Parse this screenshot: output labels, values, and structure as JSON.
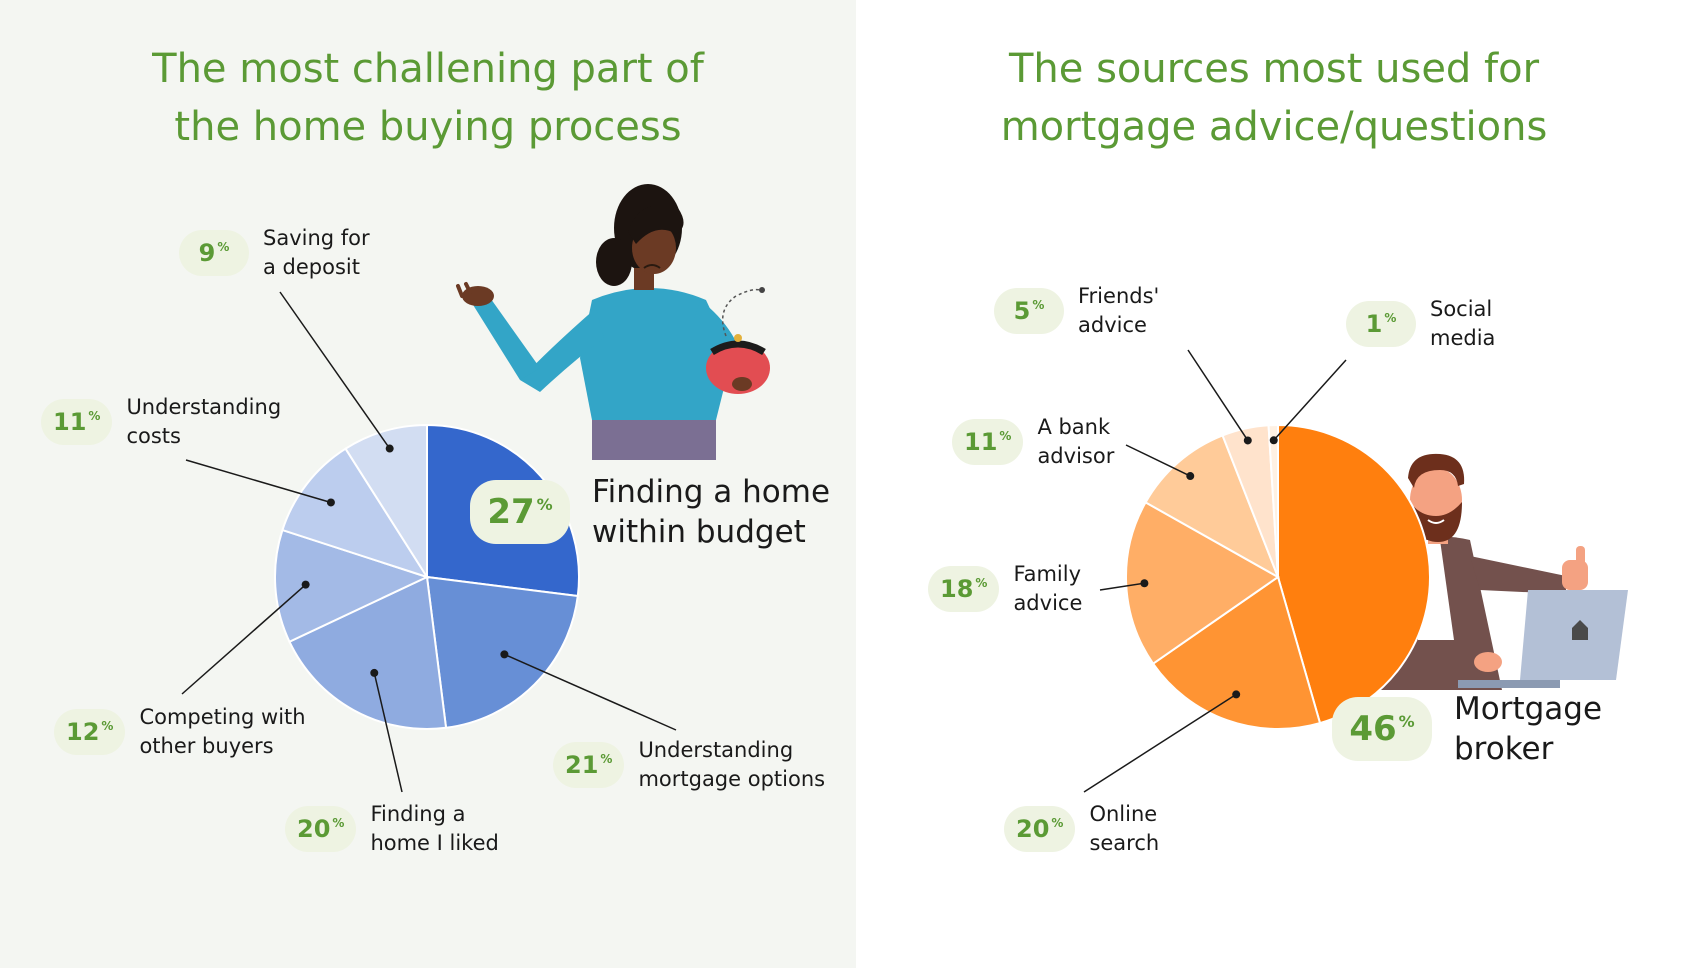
{
  "colors": {
    "title": "#5b9a35",
    "pill_text": "#5b9a35",
    "left_background": "#f4f6f2",
    "right_background": "#ffffff"
  },
  "percent_sign": "%",
  "left": {
    "title_lines": [
      "The most challening part of",
      "the home buying process"
    ],
    "illustration": "worried-woman-with-empty-purse"
  },
  "right": {
    "title_lines": [
      "The sources most used for",
      "mortgage advice/questions"
    ],
    "illustration": "bearded-man-thumbs-up-with-laptop"
  },
  "chart_data": [
    {
      "type": "pie",
      "title": "The most challening part of the home buying process",
      "unit": "%",
      "slices": [
        {
          "value": 27,
          "label_lines": [
            "Finding a home",
            "within budget"
          ],
          "color": "#3467cc",
          "highlight": true
        },
        {
          "value": 21,
          "label_lines": [
            "Understanding",
            "mortgage options"
          ],
          "color": "#678fd6"
        },
        {
          "value": 20,
          "label_lines": [
            "Finding a",
            "home I liked"
          ],
          "color": "#8fabe0"
        },
        {
          "value": 12,
          "label_lines": [
            "Competing with",
            "other buyers"
          ],
          "color": "#a3bae6"
        },
        {
          "value": 11,
          "label_lines": [
            "Understanding",
            "costs"
          ],
          "color": "#bccdee"
        },
        {
          "value": 9,
          "label_lines": [
            "Saving for",
            "a deposit"
          ],
          "color": "#d2ddf2"
        }
      ]
    },
    {
      "type": "pie",
      "title": "The sources most used for mortgage advice/questions",
      "unit": "%",
      "slices": [
        {
          "value": 46,
          "label_lines": [
            "Mortgage",
            "broker"
          ],
          "color": "#ff7f0e",
          "highlight": true
        },
        {
          "value": 20,
          "label_lines": [
            "Online",
            "search"
          ],
          "color": "#ff9433"
        },
        {
          "value": 18,
          "label_lines": [
            "Family",
            "advice"
          ],
          "color": "#ffae66"
        },
        {
          "value": 11,
          "label_lines": [
            "A bank",
            "advisor"
          ],
          "color": "#ffcb99"
        },
        {
          "value": 5,
          "label_lines": [
            "Friends'",
            "advice"
          ],
          "color": "#ffe3cc"
        },
        {
          "value": 1,
          "label_lines": [
            "Social",
            "media"
          ],
          "color": "#fff1e3"
        }
      ]
    }
  ]
}
